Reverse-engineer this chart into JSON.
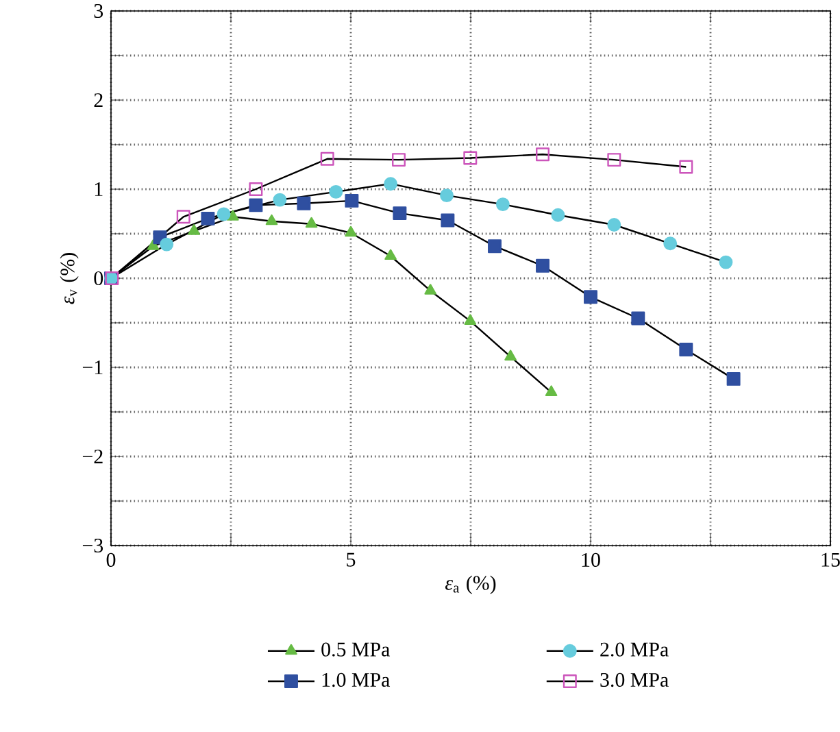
{
  "chart_data": {
    "type": "line",
    "xlabel": "*ε*$_{a}$ (%)",
    "ylabel": "*ε*$_{v}$ (%)",
    "xlim": [
      0,
      15
    ],
    "ylim": [
      -3,
      3
    ],
    "xticks": [
      0,
      {
        "value": 2.5,
        "label": null
      },
      5,
      {
        "value": 7.5,
        "label": null
      },
      10,
      {
        "value": 12.5,
        "label": null
      },
      15
    ],
    "yticks": [
      {
        "value": -3,
        "label": "−3"
      },
      {
        "value": -2.5,
        "label": null
      },
      {
        "value": -2,
        "label": "−2"
      },
      {
        "value": -1.5,
        "label": null
      },
      {
        "value": -1,
        "label": "−1"
      },
      {
        "value": -0.5,
        "label": null
      },
      0,
      {
        "value": 0.5,
        "label": null
      },
      1,
      {
        "value": 1.5,
        "label": null
      },
      2,
      {
        "value": 2.5,
        "label": null
      },
      3
    ],
    "grid": true,
    "legend": "bottom",
    "line_style": "solid",
    "series": [
      {
        "name": "0.5 MPa",
        "color": "#66bb44",
        "marker": "triangle",
        "x": [
          0,
          0.88,
          1.73,
          2.54,
          3.35,
          4.18,
          5.0,
          5.83,
          6.66,
          7.49,
          8.33,
          9.18
        ],
        "values": [
          0,
          0.36,
          0.53,
          0.69,
          0.64,
          0.61,
          0.51,
          0.25,
          -0.14,
          -0.48,
          -0.88,
          -1.28
        ]
      },
      {
        "name": "1.0 MPa",
        "color": "#2f4fa0",
        "marker": "square",
        "x": [
          0,
          1.02,
          2.02,
          3.02,
          4.02,
          5.02,
          6.02,
          7.02,
          8.0,
          9.0,
          10.0,
          10.99,
          11.99,
          12.98
        ],
        "values": [
          0,
          0.46,
          0.67,
          0.82,
          0.84,
          0.87,
          0.73,
          0.65,
          0.36,
          0.14,
          -0.21,
          -0.45,
          -0.8,
          -1.13
        ]
      },
      {
        "name": "2.0 MPa",
        "color": "#66ccdd",
        "marker": "circle",
        "x": [
          0,
          1.16,
          2.35,
          3.52,
          4.69,
          5.83,
          7.0,
          8.17,
          9.32,
          10.49,
          11.66,
          12.82
        ],
        "values": [
          0,
          0.38,
          0.72,
          0.88,
          0.97,
          1.06,
          0.93,
          0.83,
          0.71,
          0.6,
          0.39,
          0.18
        ]
      },
      {
        "name": "3.0 MPa",
        "color": "#cc55bb",
        "marker": "square",
        "x": [
          0.02,
          1.51,
          3.02,
          4.51,
          6.0,
          7.49,
          9.0,
          10.49,
          11.99
        ],
        "values": [
          0,
          0.69,
          1.0,
          1.34,
          1.33,
          1.35,
          1.39,
          1.33,
          1.25
        ]
      }
    ]
  }
}
